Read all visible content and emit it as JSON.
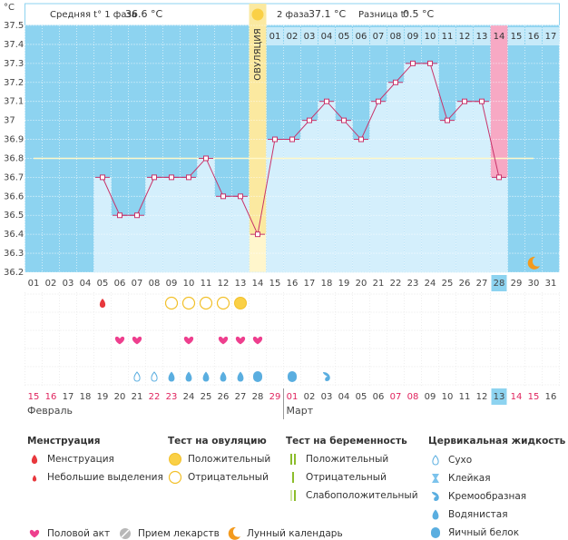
{
  "header": {
    "phase1_label": "Средняя t° 1 фаза",
    "phase1_value": "36.6 °C",
    "phase2_label": "2 фаза",
    "phase2_value": "37.1 °C",
    "diff_label": "Разница t°",
    "diff_value": "0.5 °C"
  },
  "chart_data": {
    "type": "line",
    "y_unit": "°C",
    "categories": [
      "01",
      "02",
      "03",
      "04",
      "05",
      "06",
      "07",
      "08",
      "09",
      "10",
      "11",
      "12",
      "13",
      "14",
      "15",
      "16",
      "17",
      "18",
      "19",
      "20",
      "21",
      "22",
      "23",
      "24",
      "25",
      "26",
      "27",
      "28",
      "29",
      "30",
      "31"
    ],
    "values": [
      null,
      null,
      null,
      null,
      36.7,
      36.5,
      36.5,
      36.7,
      36.7,
      36.7,
      36.8,
      36.6,
      36.6,
      36.4,
      36.9,
      36.9,
      37,
      37.1,
      37,
      36.9,
      37.1,
      37.2,
      37.3,
      37.3,
      37,
      37.1,
      37.1,
      36.7,
      null,
      null,
      null
    ],
    "color": "#c8336a",
    "ylim": [
      36.2,
      37.5
    ],
    "yticks": [
      36.2,
      36.3,
      36.4,
      36.5,
      36.6,
      36.7,
      36.8,
      36.9,
      37,
      37.1,
      37.2,
      37.3,
      37.4,
      37.5
    ],
    "coverline": 36.8,
    "ovulation_day": "14",
    "ovulation_label": "ОВУЛЯЦИЯ",
    "highlight_day": "28",
    "luteal_days": [
      null,
      null,
      null,
      null,
      null,
      null,
      null,
      null,
      null,
      null,
      null,
      null,
      null,
      null,
      "01",
      "02",
      "03",
      "04",
      "05",
      "06",
      "07",
      "08",
      "09",
      "10",
      "11",
      "12",
      "13",
      "14",
      "15",
      "16",
      "17"
    ],
    "dates": [
      "15",
      "16",
      "17",
      "18",
      "19",
      "20",
      "21",
      "22",
      "23",
      "24",
      "25",
      "26",
      "27",
      "28",
      "29",
      "01",
      "02",
      "03",
      "04",
      "05",
      "06",
      "07",
      "08",
      "09",
      "10",
      "11",
      "12",
      "13",
      "14",
      "15",
      "16"
    ],
    "weekend": [
      true,
      true,
      false,
      false,
      false,
      false,
      false,
      true,
      true,
      false,
      false,
      false,
      false,
      false,
      true,
      true,
      false,
      false,
      false,
      false,
      false,
      true,
      true,
      false,
      false,
      false,
      false,
      false,
      true,
      true,
      false
    ],
    "months": [
      "Февраль",
      null,
      null,
      null,
      null,
      null,
      null,
      null,
      null,
      null,
      null,
      null,
      null,
      null,
      null,
      "Март",
      null,
      null,
      null,
      null,
      null,
      null,
      null,
      null,
      null,
      null,
      null,
      null,
      null,
      null,
      null
    ]
  },
  "legend": [
    {
      "title": "Менструация",
      "items": [
        {
          "label": "Менструация",
          "days": [
            "05"
          ]
        },
        {
          "label": "Небольшие выделения"
        }
      ]
    },
    {
      "title": "Тест на овуляцию",
      "items": [
        {
          "label": "Положительный",
          "days": [
            "13"
          ]
        },
        {
          "label": "Отрицательный",
          "days": [
            "09",
            "10",
            "11",
            "12"
          ]
        }
      ]
    },
    {
      "title": "Тест на беременность",
      "items": [
        {
          "label": "Положительный"
        },
        {
          "label": "Отрицательный"
        },
        {
          "label": "Слабоположительный"
        }
      ]
    },
    {
      "title": "Цервикальная жидкость",
      "items": [
        {
          "label": "Сухо",
          "days": [
            "07",
            "08"
          ]
        },
        {
          "label": "Клейкая"
        },
        {
          "label": "Кремообразная",
          "days": [
            "18"
          ]
        },
        {
          "label": "Водянистая",
          "days": [
            "09",
            "10",
            "11",
            "12",
            "13"
          ]
        },
        {
          "label": "Яичный белок",
          "days": [
            "14",
            "16"
          ]
        }
      ]
    }
  ],
  "legend_extra": [
    {
      "label": "Половой акт",
      "days": [
        "06",
        "07",
        "10",
        "12",
        "13",
        "14"
      ]
    },
    {
      "label": "Прием лекарств"
    },
    {
      "label": "Лунный календарь",
      "days": [
        "30"
      ]
    }
  ]
}
